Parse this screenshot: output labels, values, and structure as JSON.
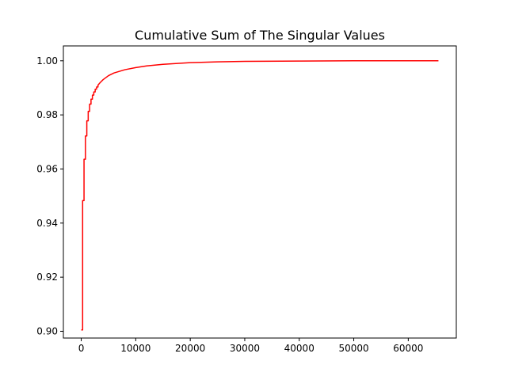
{
  "chart_data": {
    "type": "line",
    "title": "Cumulative Sum of The Singular Values",
    "xlabel": "",
    "ylabel": "",
    "xlim": [
      -3276.8,
      68812.8
    ],
    "ylim": [
      0.8975,
      1.0055
    ],
    "x_ticks": [
      0,
      10000,
      20000,
      30000,
      40000,
      50000,
      60000
    ],
    "x_tick_labels": [
      "0",
      "10000",
      "20000",
      "30000",
      "40000",
      "50000",
      "60000"
    ],
    "y_ticks": [
      0.9,
      0.92,
      0.94,
      0.96,
      0.98,
      1.0
    ],
    "y_tick_labels": [
      "0.90",
      "0.92",
      "0.94",
      "0.96",
      "0.98",
      "1.00"
    ],
    "grid": false,
    "legend": "none",
    "series": [
      {
        "color": "#ff0000",
        "x": [
          0,
          256,
          256,
          512,
          512,
          768,
          768,
          1024,
          1024,
          1280,
          1280,
          1536,
          1536,
          1792,
          1792,
          2048,
          2048,
          2304,
          2304,
          2560,
          2560,
          2816,
          2816,
          3072,
          3072,
          3500,
          4000,
          5000,
          6000,
          8000,
          10000,
          12000,
          15000,
          20000,
          25000,
          30000,
          40000,
          50000,
          65536
        ],
        "y": [
          0.9005,
          0.9005,
          0.9483,
          0.9483,
          0.9636,
          0.9636,
          0.9722,
          0.9722,
          0.9778,
          0.9778,
          0.9813,
          0.9813,
          0.984,
          0.984,
          0.9858,
          0.9858,
          0.9873,
          0.9873,
          0.9885,
          0.9885,
          0.9895,
          0.9895,
          0.9903,
          0.9903,
          0.991,
          0.992,
          0.993,
          0.9945,
          0.9955,
          0.9967,
          0.9975,
          0.9981,
          0.9987,
          0.9993,
          0.9996,
          0.9998,
          0.9999,
          1.0,
          1.0
        ]
      }
    ]
  }
}
